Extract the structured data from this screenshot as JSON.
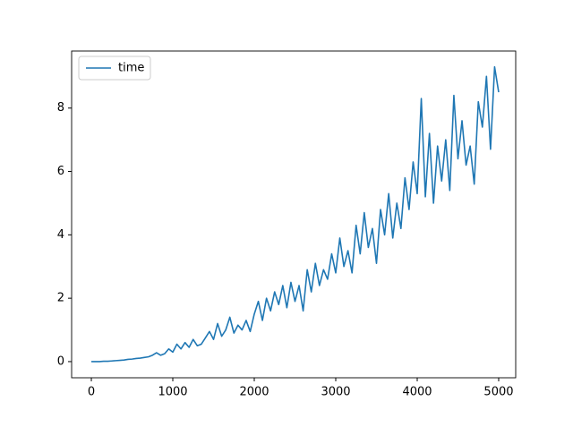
{
  "chart_data": {
    "type": "line",
    "x": [
      0,
      50,
      100,
      150,
      200,
      250,
      300,
      350,
      400,
      450,
      500,
      550,
      600,
      650,
      700,
      750,
      800,
      850,
      900,
      950,
      1000,
      1050,
      1100,
      1150,
      1200,
      1250,
      1300,
      1350,
      1400,
      1450,
      1500,
      1550,
      1600,
      1650,
      1700,
      1750,
      1800,
      1850,
      1900,
      1950,
      2000,
      2050,
      2100,
      2150,
      2200,
      2250,
      2300,
      2350,
      2400,
      2450,
      2500,
      2550,
      2600,
      2650,
      2700,
      2750,
      2800,
      2850,
      2900,
      2950,
      3000,
      3050,
      3100,
      3150,
      3200,
      3250,
      3300,
      3350,
      3400,
      3450,
      3500,
      3550,
      3600,
      3650,
      3700,
      3750,
      3800,
      3850,
      3900,
      3950,
      4000,
      4050,
      4100,
      4150,
      4200,
      4250,
      4300,
      4350,
      4400,
      4450,
      4500,
      4550,
      4600,
      4650,
      4700,
      4750,
      4800,
      4850,
      4900,
      4950,
      5000
    ],
    "series": [
      {
        "name": "time",
        "color": "#1f77b4",
        "values": [
          0,
          0,
          0,
          0.01,
          0.01,
          0.02,
          0.03,
          0.04,
          0.05,
          0.07,
          0.08,
          0.1,
          0.11,
          0.13,
          0.15,
          0.2,
          0.28,
          0.2,
          0.25,
          0.4,
          0.3,
          0.55,
          0.4,
          0.6,
          0.45,
          0.7,
          0.5,
          0.55,
          0.75,
          0.95,
          0.7,
          1.2,
          0.8,
          1.0,
          1.4,
          0.9,
          1.15,
          1.0,
          1.3,
          0.95,
          1.5,
          1.9,
          1.3,
          2.0,
          1.6,
          2.2,
          1.8,
          2.4,
          1.7,
          2.5,
          1.9,
          2.4,
          1.6,
          2.9,
          2.2,
          3.1,
          2.4,
          2.9,
          2.6,
          3.4,
          2.8,
          3.9,
          3.0,
          3.5,
          2.8,
          4.3,
          3.4,
          4.7,
          3.6,
          4.2,
          3.1,
          4.8,
          4.0,
          5.3,
          3.9,
          5.0,
          4.2,
          5.8,
          4.8,
          6.3,
          5.3,
          8.3,
          5.2,
          7.2,
          5.0,
          6.8,
          5.7,
          7.0,
          5.4,
          8.4,
          6.4,
          7.6,
          6.2,
          6.8,
          5.6,
          8.2,
          7.4,
          9.0,
          6.7,
          9.3,
          8.5
        ]
      }
    ],
    "xlim": [
      -242,
      5209
    ],
    "ylim": [
      -0.51,
      9.8
    ],
    "xticks": [
      0,
      1000,
      2000,
      3000,
      4000,
      5000
    ],
    "yticks": [
      0,
      2,
      4,
      6,
      8
    ],
    "legend": "upper left"
  }
}
